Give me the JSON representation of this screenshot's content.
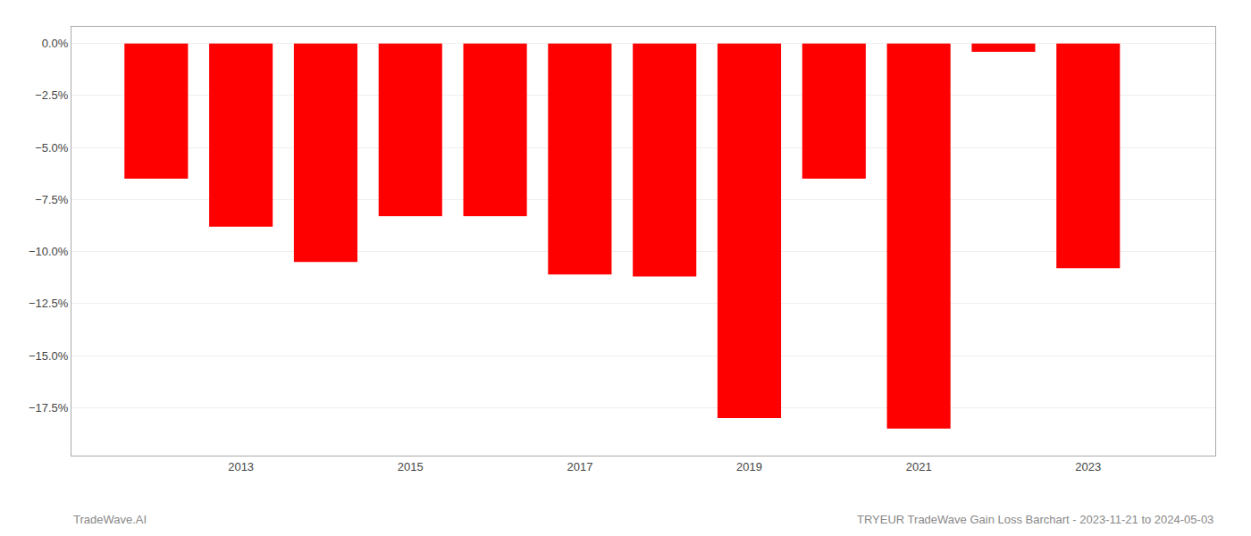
{
  "chart_data": {
    "type": "bar",
    "title": "TRYEUR TradeWave Gain Loss Barchart - 2023-11-21 to 2024-05-03",
    "annotations": [
      "TradeWave.AI"
    ],
    "x": [
      2012,
      2013,
      2014,
      2015,
      2016,
      2017,
      2018,
      2019,
      2020,
      2021,
      2022,
      2023
    ],
    "values": [
      -6.5,
      -8.8,
      -10.5,
      -8.3,
      -8.3,
      -11.1,
      -11.2,
      -18.0,
      -6.5,
      -18.5,
      -0.4,
      -10.8
    ],
    "color": "#ff0000",
    "xlim": [
      2011.0,
      2024.5
    ],
    "xticks": [
      2013,
      2015,
      2017,
      2019,
      2021,
      2023
    ],
    "ylim": [
      -19.8,
      0.8
    ],
    "yticks": [
      {
        "value": 0.0,
        "label": "0.0%"
      },
      {
        "value": -2.5,
        "label": "−2.5%"
      },
      {
        "value": -5.0,
        "label": "−5.0%"
      },
      {
        "value": -7.5,
        "label": "−7.5%"
      },
      {
        "value": -10.0,
        "label": "−10.0%"
      },
      {
        "value": -12.5,
        "label": "−12.5%"
      },
      {
        "value": -15.0,
        "label": "−15.0%"
      },
      {
        "value": -17.5,
        "label": "−17.5%"
      }
    ],
    "grid": true
  }
}
